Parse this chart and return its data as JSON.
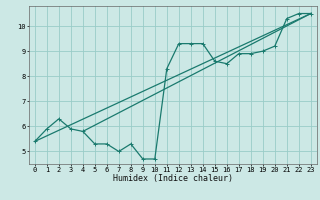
{
  "title": "",
  "xlabel": "Humidex (Indice chaleur)",
  "ylabel": "",
  "background_color": "#cce8e5",
  "grid_color": "#99ccc8",
  "line_color": "#1a7a6e",
  "xlim": [
    -0.5,
    23.5
  ],
  "ylim": [
    4.5,
    10.8
  ],
  "xticks": [
    0,
    1,
    2,
    3,
    4,
    5,
    6,
    7,
    8,
    9,
    10,
    11,
    12,
    13,
    14,
    15,
    16,
    17,
    18,
    19,
    20,
    21,
    22,
    23
  ],
  "yticks": [
    5,
    6,
    7,
    8,
    9,
    10
  ],
  "series1_x": [
    0,
    1,
    2,
    3,
    4,
    5,
    6,
    7,
    8,
    9,
    10,
    11,
    12,
    13,
    14,
    15,
    16,
    17,
    18,
    19,
    20,
    21,
    22,
    23
  ],
  "series1_y": [
    5.4,
    5.9,
    6.3,
    5.9,
    5.8,
    5.3,
    5.3,
    5.0,
    5.3,
    4.7,
    4.7,
    8.3,
    9.3,
    9.3,
    9.3,
    8.6,
    8.5,
    8.9,
    8.9,
    9.0,
    9.2,
    10.3,
    10.5,
    10.5
  ],
  "series2_x": [
    0,
    23
  ],
  "series2_y": [
    5.4,
    10.5
  ],
  "series3_x": [
    4,
    23
  ],
  "series3_y": [
    5.8,
    10.5
  ],
  "marker_size": 2.5,
  "linewidth": 0.9,
  "tick_fontsize": 5.0,
  "xlabel_fontsize": 6.0
}
